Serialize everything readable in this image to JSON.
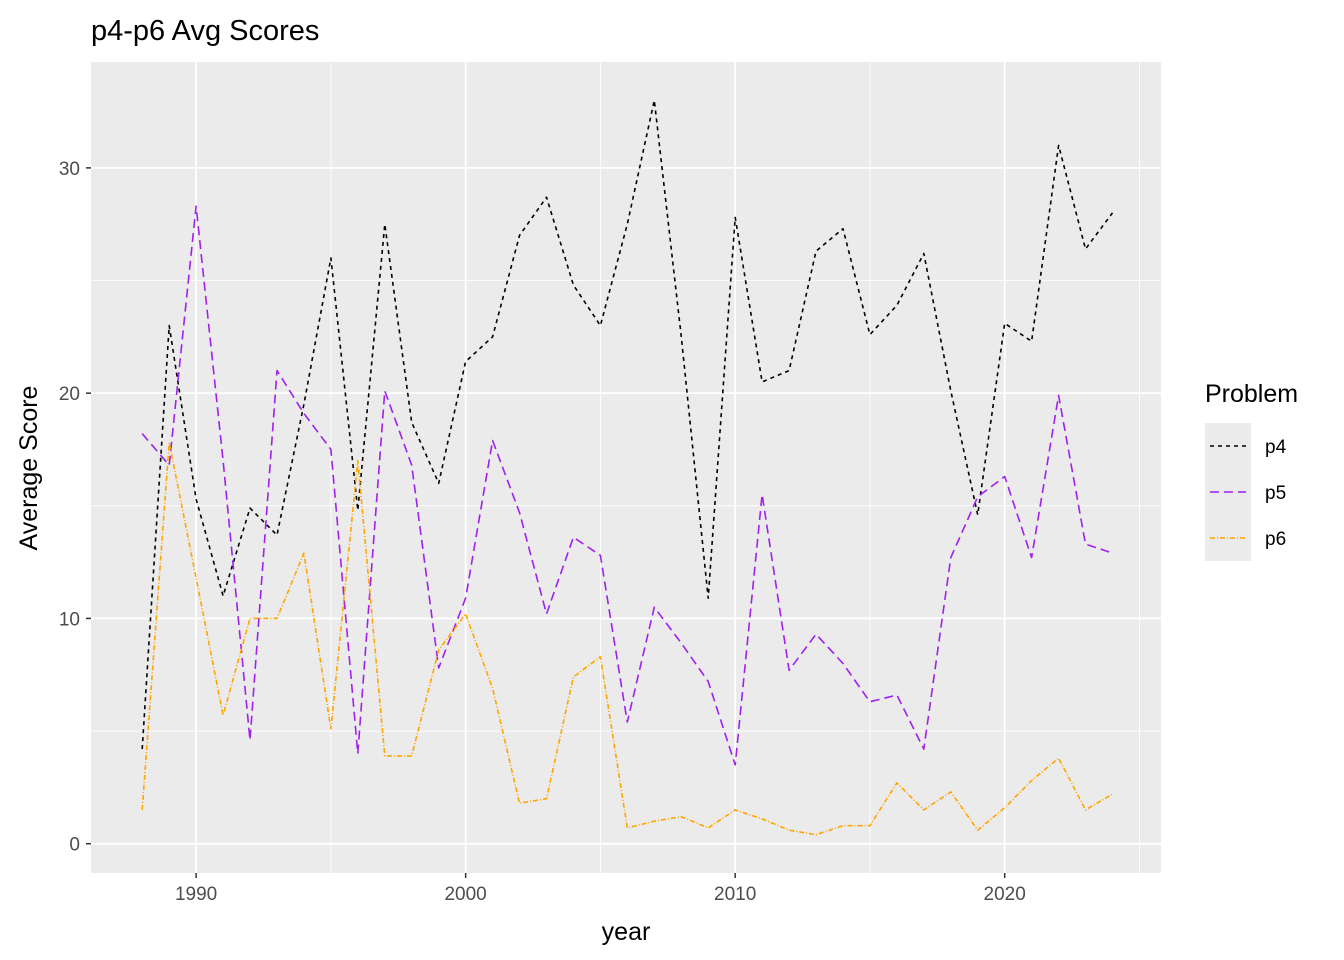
{
  "chart_data": {
    "type": "line",
    "title": "p4-p6 Avg Scores",
    "xlabel": "year",
    "ylabel": "Average Score",
    "xlim": [
      1986.1,
      2025.8
    ],
    "ylim": [
      -1.3,
      34.7
    ],
    "x_ticks": [
      1990,
      2000,
      2010,
      2020
    ],
    "y_ticks": [
      0,
      10,
      20,
      30
    ],
    "grid": true,
    "legend": {
      "title": "Problem",
      "position": "right"
    },
    "x": [
      1988,
      1989,
      1990,
      1991,
      1992,
      1993,
      1994,
      1995,
      1996,
      1997,
      1998,
      1999,
      2000,
      2001,
      2002,
      2003,
      2004,
      2005,
      2006,
      2007,
      2008,
      2009,
      2010,
      2011,
      2012,
      2013,
      2014,
      2015,
      2016,
      2017,
      2018,
      2019,
      2020,
      2021,
      2022,
      2023,
      2024
    ],
    "series": [
      {
        "name": "p4",
        "color": "#000000",
        "dash": "4,4",
        "values": [
          4.2,
          23.0,
          15.3,
          11.0,
          14.9,
          13.7,
          19.5,
          26.0,
          14.8,
          27.5,
          18.7,
          16.0,
          21.4,
          22.5,
          27.0,
          28.7,
          24.8,
          23.0,
          27.5,
          33.0,
          22.5,
          10.9,
          27.8,
          20.5,
          21.0,
          26.3,
          27.3,
          22.6,
          23.9,
          26.2,
          20.1,
          14.6,
          23.1,
          22.3,
          31.0,
          26.4,
          28.0
        ]
      },
      {
        "name": "p5",
        "color": "#a020f0",
        "dash": "9,5",
        "values": [
          18.2,
          16.8,
          28.3,
          17.0,
          4.6,
          21.0,
          19.1,
          17.5,
          4.0,
          20.1,
          16.8,
          7.8,
          10.9,
          17.9,
          14.7,
          10.2,
          13.6,
          12.8,
          5.4,
          10.5,
          8.9,
          7.2,
          3.5,
          15.5,
          7.7,
          9.3,
          8.0,
          6.3,
          6.6,
          4.2,
          12.7,
          15.4,
          16.3,
          12.7,
          19.9,
          13.3,
          12.9
        ]
      },
      {
        "name": "p6",
        "color": "#ffa500",
        "dash": "5,2,1,2",
        "values": [
          1.5,
          17.8,
          11.8,
          5.7,
          10.0,
          10.0,
          12.9,
          5.1,
          17.0,
          3.9,
          3.9,
          8.6,
          10.2,
          6.9,
          1.8,
          2.0,
          7.4,
          8.3,
          0.7,
          1.0,
          1.2,
          0.7,
          1.5,
          1.1,
          0.6,
          0.4,
          0.8,
          0.8,
          2.7,
          1.5,
          2.3,
          0.6,
          1.6,
          2.8,
          3.8,
          1.5,
          2.2
        ]
      }
    ]
  }
}
